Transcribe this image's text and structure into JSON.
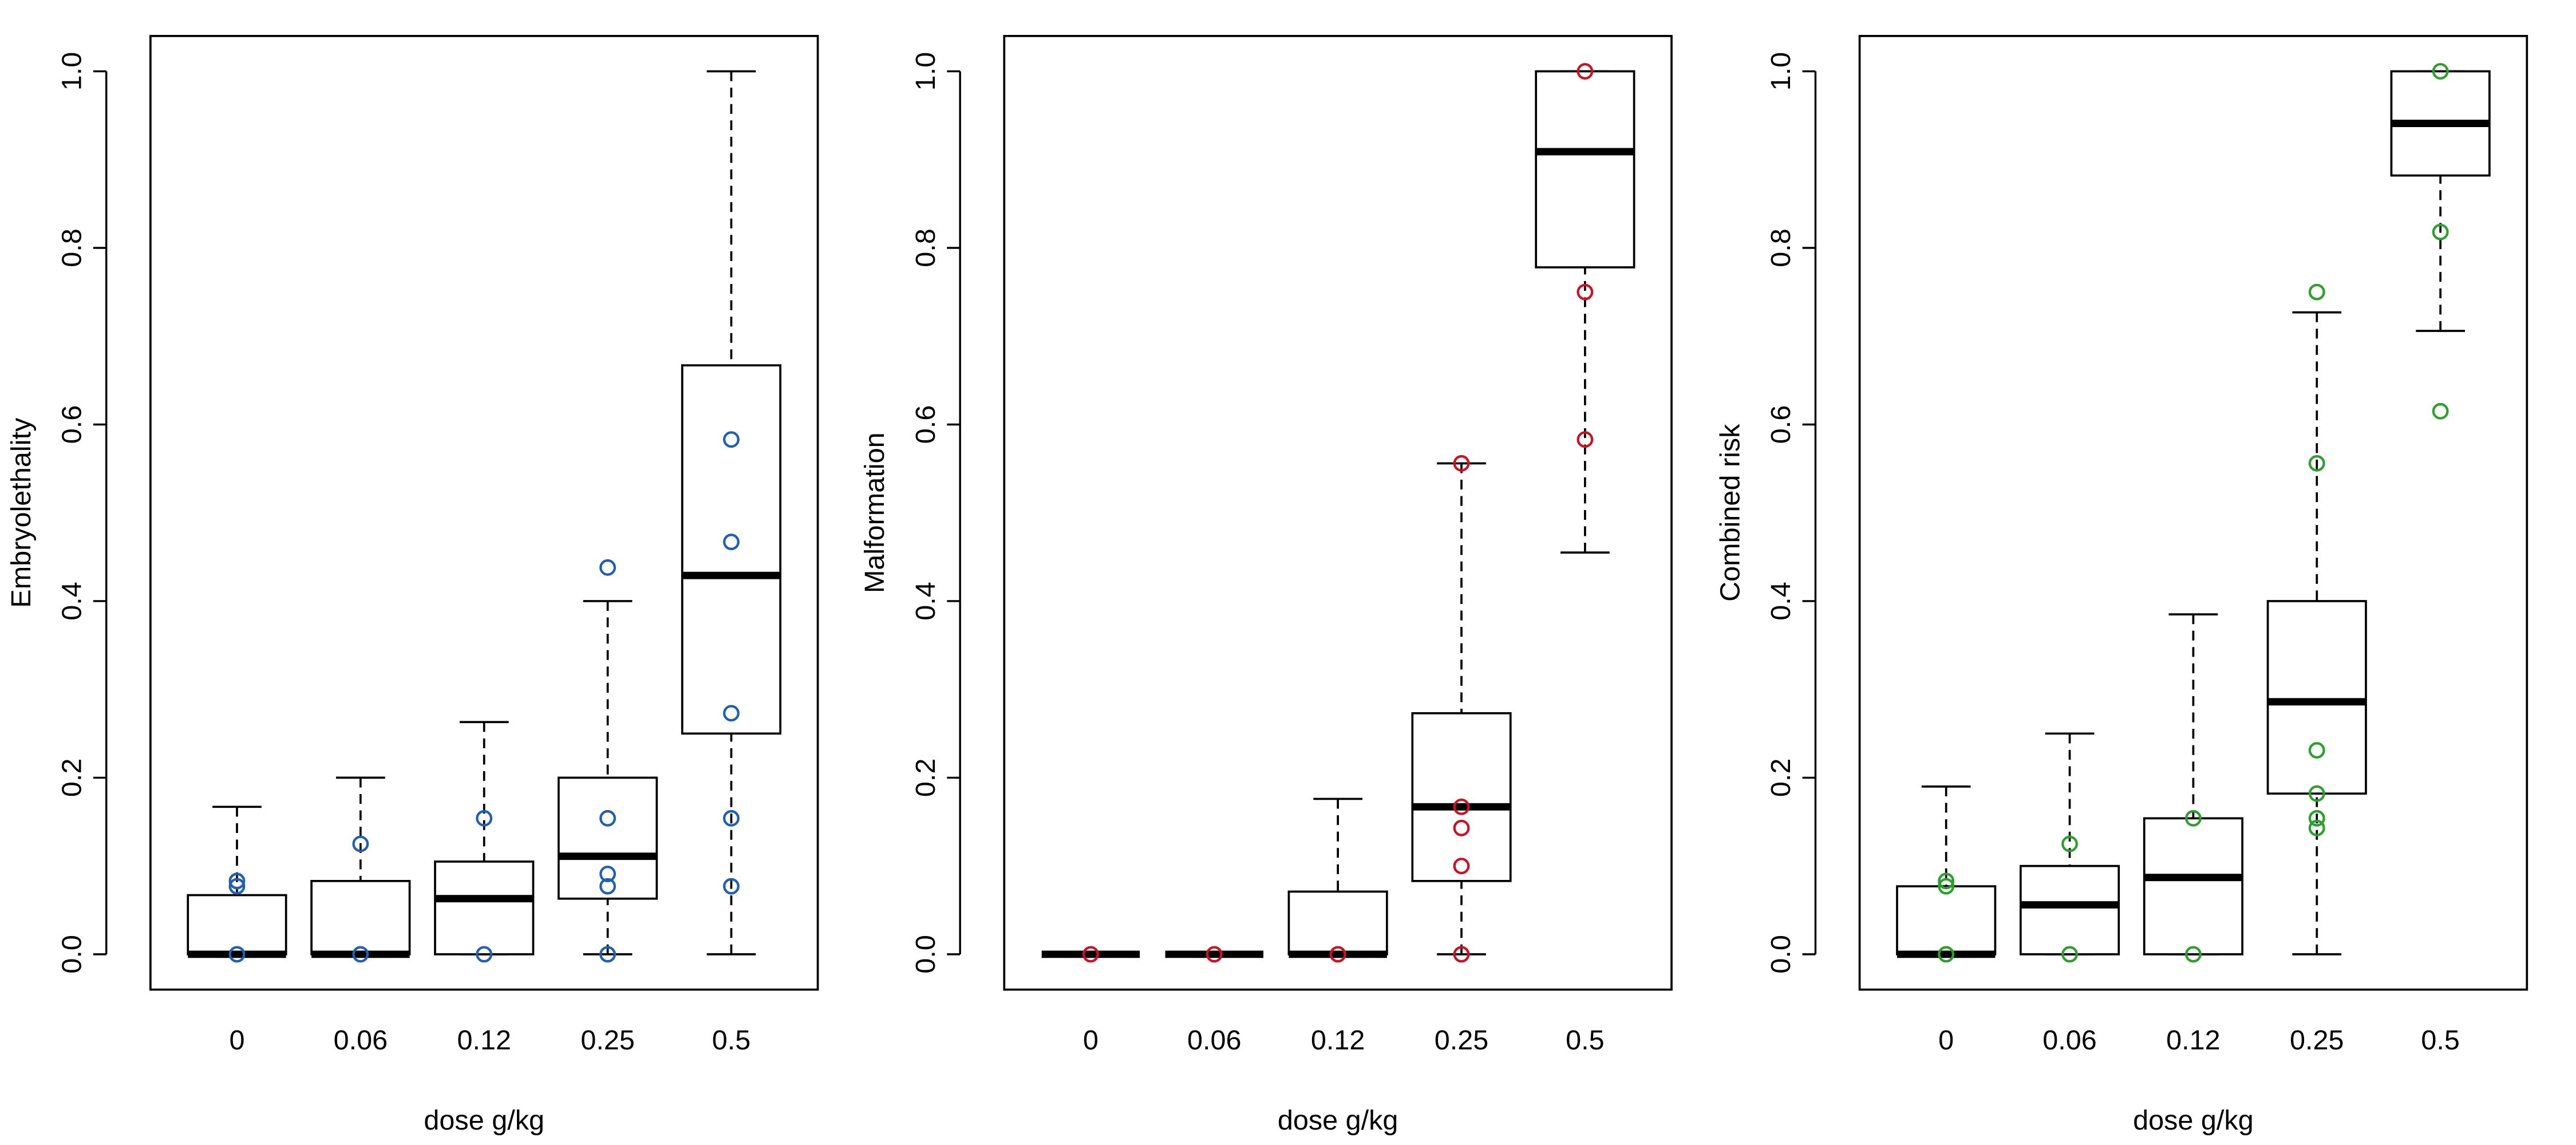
{
  "chart_data": [
    {
      "type": "box",
      "ylabel": "Embryolethality",
      "xlabel": "dose g/kg",
      "color": "#1f5fb4",
      "categories": [
        "0",
        "0.06",
        "0.12",
        "0.25",
        "0.5"
      ],
      "boxes": [
        {
          "whislo": 0,
          "q1": 0,
          "med": 0,
          "q3": 0.067,
          "whishi": 0.167,
          "points": [
            0.083,
            0.077,
            0
          ]
        },
        {
          "whislo": 0,
          "q1": 0,
          "med": 0,
          "q3": 0.083,
          "whishi": 0.2,
          "points": [
            0.125,
            0
          ]
        },
        {
          "whislo": 0,
          "q1": 0,
          "med": 0.063,
          "q3": 0.105,
          "whishi": 0.263,
          "points": [
            0.154,
            0
          ]
        },
        {
          "whislo": 0,
          "q1": 0.063,
          "med": 0.111,
          "q3": 0.2,
          "whishi": 0.4,
          "points": [
            0.438,
            0.154,
            0.091,
            0.077,
            0
          ]
        },
        {
          "whislo": 0,
          "q1": 0.25,
          "med": 0.429,
          "q3": 0.667,
          "whishi": 1,
          "points": [
            0.583,
            0.467,
            0.273,
            0.154,
            0.077
          ]
        }
      ],
      "ylim": [
        -0.04,
        1.04
      ],
      "yticks": [
        {
          "value": 0,
          "label": "0.0"
        },
        {
          "value": 0.2,
          "label": "0.2"
        },
        {
          "value": 0.4,
          "label": "0.4"
        },
        {
          "value": 0.6,
          "label": "0.6"
        },
        {
          "value": 0.8,
          "label": "0.8"
        },
        {
          "value": 1,
          "label": "1.0"
        }
      ]
    },
    {
      "type": "box",
      "ylabel": "Malformation",
      "xlabel": "dose g/kg",
      "color": "#cc1122",
      "categories": [
        "0",
        "0.06",
        "0.12",
        "0.25",
        "0.5"
      ],
      "boxes": [
        {
          "whislo": 0,
          "q1": 0,
          "med": 0,
          "q3": 0,
          "whishi": 0,
          "points": [
            0
          ]
        },
        {
          "whislo": 0,
          "q1": 0,
          "med": 0,
          "q3": 0,
          "whishi": 0,
          "points": [
            0
          ]
        },
        {
          "whislo": 0,
          "q1": 0,
          "med": 0,
          "q3": 0.071,
          "whishi": 0.176,
          "points": [
            0
          ]
        },
        {
          "whislo": 0,
          "q1": 0.083,
          "med": 0.167,
          "q3": 0.273,
          "whishi": 0.556,
          "points": [
            0.556,
            0.167,
            0.143,
            0.1,
            0
          ]
        },
        {
          "whislo": 0.455,
          "q1": 0.778,
          "med": 0.909,
          "q3": 1,
          "whishi": 1,
          "points": [
            1,
            0.75,
            0.583
          ]
        }
      ],
      "ylim": [
        -0.04,
        1.04
      ],
      "yticks": [
        {
          "value": 0,
          "label": "0.0"
        },
        {
          "value": 0.2,
          "label": "0.2"
        },
        {
          "value": 0.4,
          "label": "0.4"
        },
        {
          "value": 0.6,
          "label": "0.6"
        },
        {
          "value": 0.8,
          "label": "0.8"
        },
        {
          "value": 1,
          "label": "1.0"
        }
      ]
    },
    {
      "type": "box",
      "ylabel": "Combined risk",
      "xlabel": "dose g/kg",
      "color": "#2ca02c",
      "categories": [
        "0",
        "0.06",
        "0.12",
        "0.25",
        "0.5"
      ],
      "boxes": [
        {
          "whislo": 0,
          "q1": 0,
          "med": 0,
          "q3": 0.077,
          "whishi": 0.19,
          "points": [
            0.083,
            0.077,
            0
          ]
        },
        {
          "whislo": 0,
          "q1": 0,
          "med": 0.056,
          "q3": 0.1,
          "whishi": 0.25,
          "points": [
            0.125,
            0
          ]
        },
        {
          "whislo": 0,
          "q1": 0,
          "med": 0.087,
          "q3": 0.154,
          "whishi": 0.385,
          "points": [
            0.154,
            0
          ]
        },
        {
          "whislo": 0,
          "q1": 0.182,
          "med": 0.286,
          "q3": 0.4,
          "whishi": 0.727,
          "points": [
            0.75,
            0.556,
            0.231,
            0.182,
            0.154,
            0.143
          ]
        },
        {
          "whislo": 0.706,
          "q1": 0.882,
          "med": 0.941,
          "q3": 1,
          "whishi": 1,
          "points": [
            1,
            0.818,
            0.615
          ]
        }
      ],
      "ylim": [
        -0.04,
        1.04
      ],
      "yticks": [
        {
          "value": 0,
          "label": "0.0"
        },
        {
          "value": 0.2,
          "label": "0.2"
        },
        {
          "value": 0.4,
          "label": "0.4"
        },
        {
          "value": 0.6,
          "label": "0.6"
        },
        {
          "value": 0.8,
          "label": "0.8"
        },
        {
          "value": 1,
          "label": "1.0"
        }
      ]
    }
  ]
}
